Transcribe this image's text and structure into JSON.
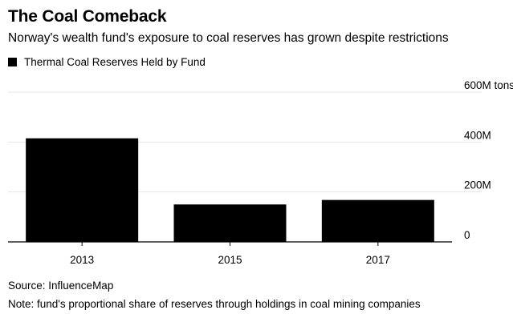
{
  "header": {
    "title": "The Coal Comeback",
    "subtitle": "Norway's wealth fund's exposure to coal reserves has grown despite restrictions"
  },
  "legend": {
    "label": "Thermal Coal Reserves Held by Fund"
  },
  "footer": {
    "source": "Source: InfluenceMap",
    "note": "Note: fund's proportional share of reserves through holdings in coal mining companies"
  },
  "chart_data": {
    "type": "bar",
    "title": "The Coal Comeback",
    "subtitle": "Norway's wealth fund's exposure to coal reserves has grown despite restrictions",
    "categories": [
      "2013",
      "2015",
      "2017"
    ],
    "series": [
      {
        "name": "Thermal Coal Reserves Held by Fund",
        "values": [
          415,
          150,
          168
        ],
        "color": "#000000"
      }
    ],
    "ylim": [
      0,
      600
    ],
    "yticks": [
      0,
      200,
      400,
      600
    ],
    "ytick_labels": [
      "0",
      "200M",
      "400M",
      "600M tons"
    ],
    "xlabel": "",
    "ylabel": "",
    "grid": true,
    "legend_position": "top-left"
  }
}
